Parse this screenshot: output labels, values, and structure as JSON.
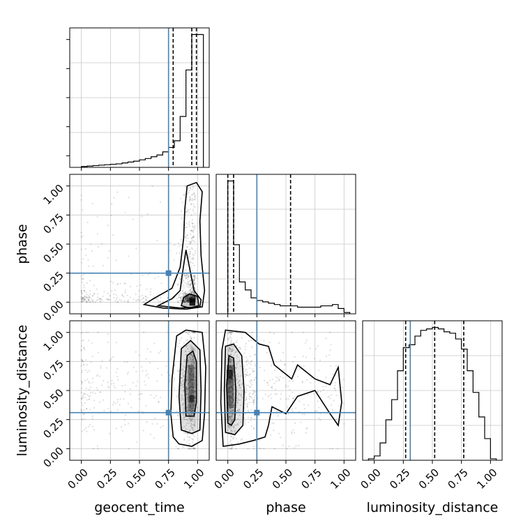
{
  "chart_data": {
    "type": "corner",
    "parameters": [
      "geocent_time",
      "phase",
      "luminosity_distance"
    ],
    "labels": [
      "geocent_time",
      "phase",
      "luminosity_distance"
    ],
    "tick_values": [
      0.0,
      0.25,
      0.5,
      0.75,
      1.0
    ],
    "tick_labels": [
      "0.00",
      "0.25",
      "0.50",
      "0.75",
      "1.00"
    ],
    "axis_range": [
      -0.1,
      1.1
    ],
    "grid": true,
    "truths": {
      "geocent_time": 0.75,
      "phase": 0.25,
      "luminosity_distance": 0.31
    },
    "truth_color": "#4682b4",
    "quantiles": {
      "geocent_time": [
        0.79,
        0.95,
        0.99
      ],
      "phase": [
        0.0,
        0.05,
        0.54
      ],
      "luminosity_distance": [
        0.27,
        0.52,
        0.77
      ]
    },
    "histograms": {
      "geocent_time": {
        "bin_edges": [
          0.0,
          0.05,
          0.1,
          0.15,
          0.2,
          0.25,
          0.3,
          0.35,
          0.4,
          0.45,
          0.5,
          0.55,
          0.6,
          0.65,
          0.7,
          0.75,
          0.8,
          0.85,
          0.9,
          0.95,
          1.0,
          1.05
        ],
        "counts": [
          2,
          3,
          4,
          5,
          6,
          7,
          8,
          10,
          12,
          14,
          17,
          20,
          24,
          28,
          35,
          45,
          60,
          115,
          220,
          300,
          300
        ]
      },
      "phase": {
        "bin_edges": [
          0.0,
          0.05,
          0.1,
          0.15,
          0.2,
          0.25,
          0.3,
          0.35,
          0.4,
          0.45,
          0.5,
          0.55,
          0.6,
          0.65,
          0.7,
          0.75,
          0.8,
          0.85,
          0.9,
          0.95,
          1.0,
          1.05
        ],
        "counts": [
          100,
          52,
          24,
          18,
          12,
          10,
          9,
          8,
          7,
          6,
          6,
          6,
          5,
          5,
          5,
          5,
          6,
          6,
          7,
          4,
          1
        ]
      },
      "luminosity_distance": {
        "bin_edges": [
          -0.05,
          0.0,
          0.05,
          0.1,
          0.15,
          0.2,
          0.25,
          0.3,
          0.35,
          0.4,
          0.45,
          0.5,
          0.55,
          0.6,
          0.65,
          0.7,
          0.75,
          0.8,
          0.85,
          0.9,
          0.95,
          1.0,
          1.05
        ],
        "counts": [
          1,
          3,
          12,
          28,
          42,
          62,
          78,
          80,
          86,
          90,
          91,
          92,
          91,
          89,
          88,
          84,
          77,
          62,
          47,
          30,
          15,
          1
        ]
      }
    },
    "panels": [
      "geocent_time",
      "phase|geocent_time",
      "phase",
      "luminosity_distance|geocent_time",
      "luminosity_distance|phase",
      "luminosity_distance"
    ]
  }
}
